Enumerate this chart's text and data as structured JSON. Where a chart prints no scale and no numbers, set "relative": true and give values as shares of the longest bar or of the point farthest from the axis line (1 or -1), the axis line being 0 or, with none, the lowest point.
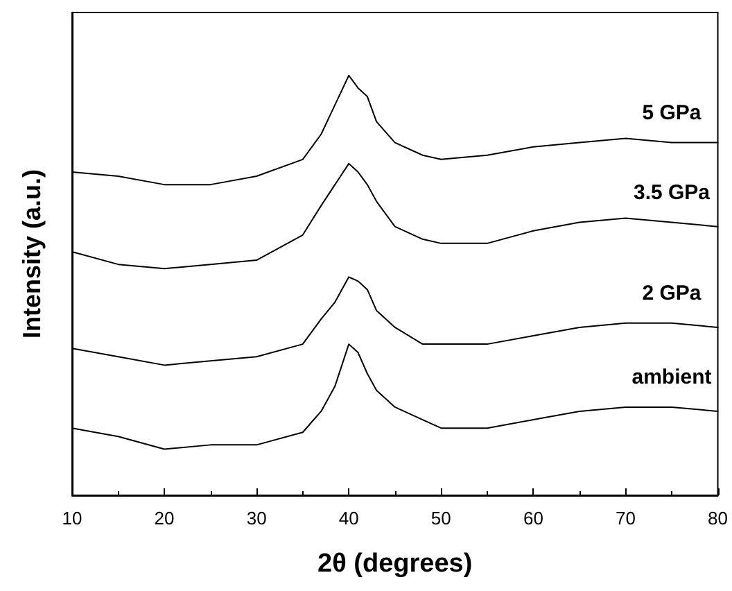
{
  "chart_data": {
    "type": "line",
    "relative": true,
    "xlabel": "2θ (degrees)",
    "ylabel": "Intensity (a.u.)",
    "xlim": [
      10,
      80
    ],
    "xticks": [
      10,
      20,
      30,
      40,
      50,
      60,
      70,
      80
    ],
    "tick_labels": "x",
    "legend": false,
    "grid": false,
    "marker": "none",
    "line_style": "solid",
    "x": [
      10,
      15,
      20,
      25,
      30,
      35,
      37,
      38.5,
      40,
      41,
      42,
      43,
      45,
      48,
      50,
      55,
      60,
      65,
      70,
      75,
      80
    ],
    "series": [
      {
        "name": "ambient",
        "color": "#000000",
        "values": [
          0.16,
          0.14,
          0.11,
          0.12,
          0.12,
          0.15,
          0.2,
          0.26,
          0.36,
          0.34,
          0.29,
          0.25,
          0.21,
          0.18,
          0.16,
          0.16,
          0.18,
          0.2,
          0.21,
          0.21,
          0.2
        ]
      },
      {
        "name": "2 GPa",
        "color": "#000000",
        "values": [
          0.35,
          0.33,
          0.31,
          0.32,
          0.33,
          0.36,
          0.42,
          0.46,
          0.52,
          0.51,
          0.49,
          0.44,
          0.4,
          0.36,
          0.36,
          0.36,
          0.38,
          0.4,
          0.41,
          0.41,
          0.4
        ]
      },
      {
        "name": "3.5 GPa",
        "color": "#000000",
        "values": [
          0.58,
          0.55,
          0.54,
          0.55,
          0.56,
          0.62,
          0.69,
          0.74,
          0.79,
          0.77,
          0.74,
          0.7,
          0.64,
          0.61,
          0.6,
          0.6,
          0.63,
          0.65,
          0.66,
          0.65,
          0.64
        ]
      },
      {
        "name": "5 GPa",
        "color": "#000000",
        "values": [
          0.77,
          0.76,
          0.74,
          0.74,
          0.76,
          0.8,
          0.86,
          0.93,
          1.0,
          0.97,
          0.95,
          0.89,
          0.84,
          0.81,
          0.8,
          0.81,
          0.83,
          0.84,
          0.85,
          0.84,
          0.84
        ]
      }
    ]
  }
}
